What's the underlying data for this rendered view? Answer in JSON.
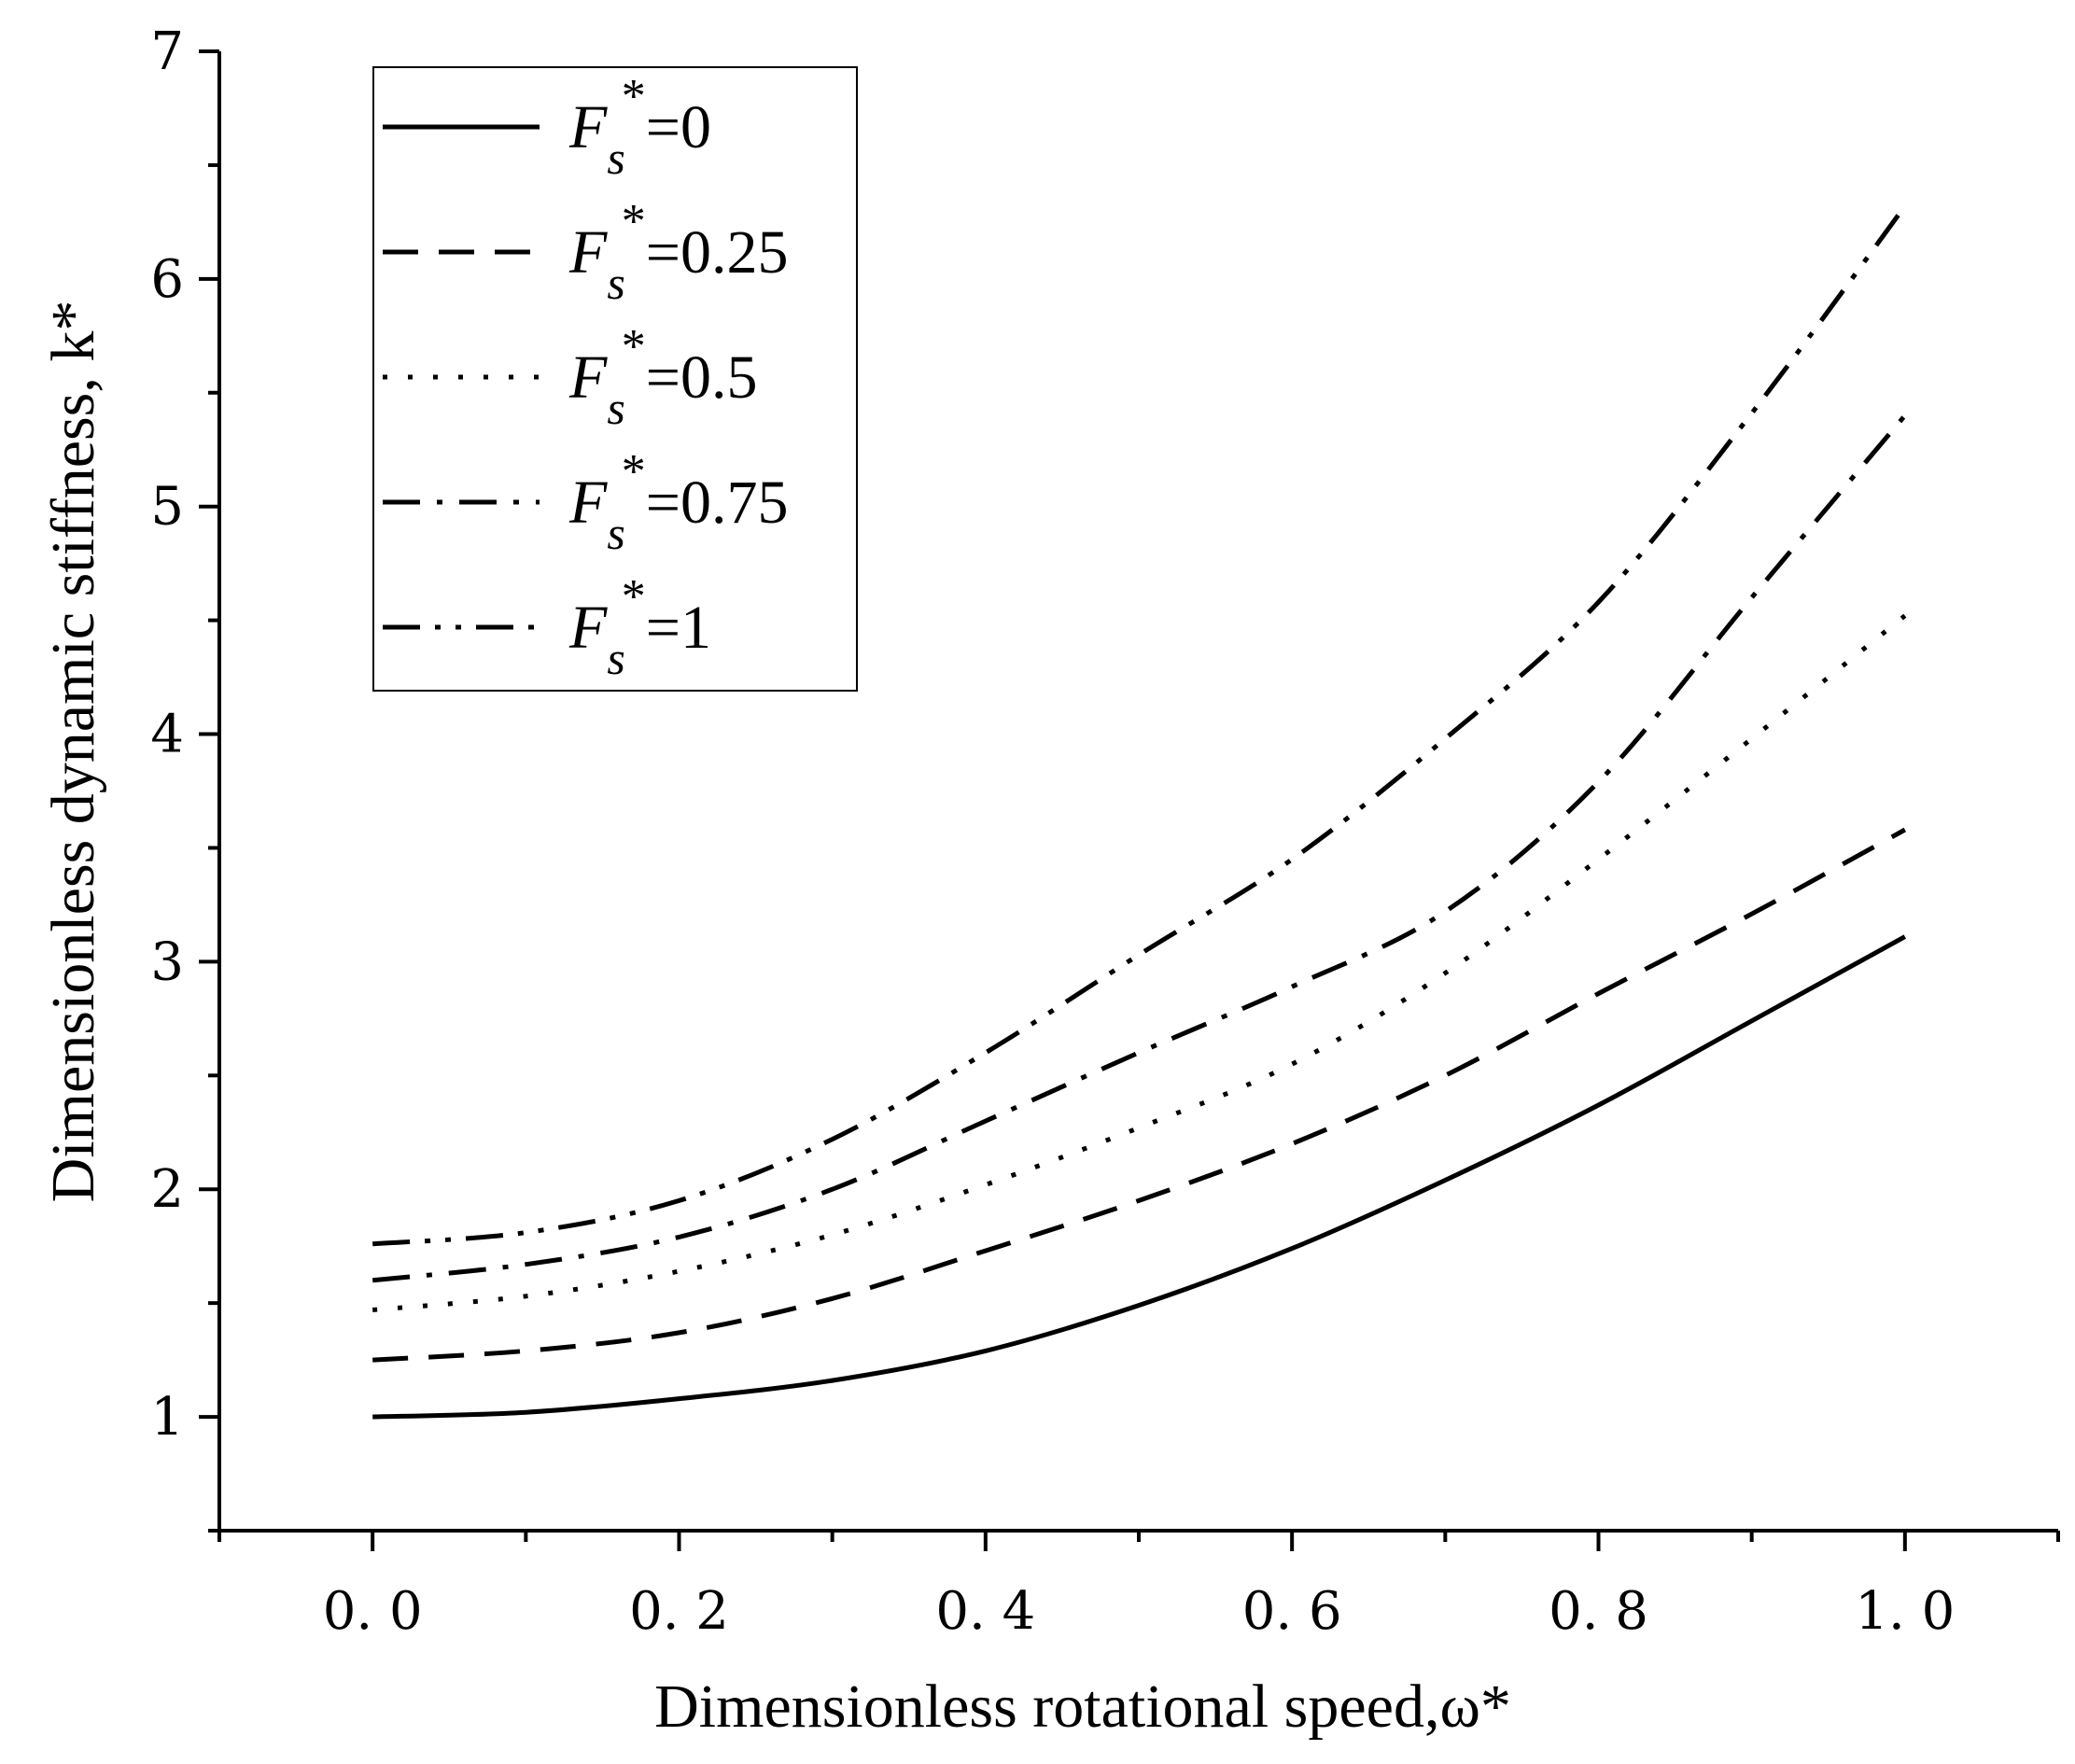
{
  "chart_data": {
    "type": "line",
    "title": "",
    "xlabel": "Dimensionless rotational speed,ω*",
    "ylabel": "Dimensionless dynamic stiffness, k*",
    "xlim": [
      -0.1,
      1.1
    ],
    "ylim": [
      0.5,
      7
    ],
    "x_ticks": [
      0.0,
      0.2,
      0.4,
      0.6,
      0.8,
      1.0
    ],
    "x_tick_labels": [
      "0. 0",
      "0. 2",
      "0. 4",
      "0. 6",
      "0. 8",
      "1. 0"
    ],
    "y_ticks": [
      1,
      2,
      3,
      4,
      5,
      6,
      7
    ],
    "y_tick_labels": [
      "1",
      "2",
      "3",
      "4",
      "5",
      "6",
      "7"
    ],
    "grid": false,
    "legend_position": "top-left",
    "x": [
      0.0,
      0.1,
      0.2,
      0.3,
      0.4,
      0.5,
      0.6,
      0.7,
      0.8,
      0.9,
      1.0
    ],
    "series": [
      {
        "name": "Fs*=0",
        "symbol": "F",
        "subscript": "s",
        "superscript": "*",
        "value_text": "=0",
        "dash": "solid",
        "values": [
          1.0,
          1.02,
          1.08,
          1.16,
          1.29,
          1.49,
          1.74,
          2.04,
          2.37,
          2.74,
          3.11
        ]
      },
      {
        "name": "Fs*=0.25",
        "symbol": "F",
        "subscript": "s",
        "superscript": "*",
        "value_text": "=0.25",
        "dash": "dash",
        "values": [
          1.25,
          1.29,
          1.37,
          1.52,
          1.73,
          1.95,
          2.2,
          2.5,
          2.86,
          3.21,
          3.58
        ]
      },
      {
        "name": "Fs*=0.5",
        "symbol": "F",
        "subscript": "s",
        "superscript": "*",
        "value_text": "=0.5",
        "dash": "dot",
        "values": [
          1.47,
          1.53,
          1.64,
          1.8,
          2.02,
          2.27,
          2.55,
          2.95,
          3.45,
          3.98,
          4.52
        ]
      },
      {
        "name": "Fs*=0.75",
        "symbol": "F",
        "subscript": "s",
        "superscript": "*",
        "value_text": "=0.75",
        "dash": "dashdot",
        "values": [
          1.6,
          1.67,
          1.79,
          2.0,
          2.3,
          2.6,
          2.89,
          3.22,
          3.79,
          4.6,
          5.4
        ]
      },
      {
        "name": "Fs*=1",
        "symbol": "F",
        "subscript": "s",
        "superscript": "*",
        "value_text": "=1",
        "dash": "dashdotdot",
        "values": [
          1.76,
          1.81,
          1.95,
          2.22,
          2.6,
          3.03,
          3.45,
          3.98,
          4.58,
          5.41,
          6.32
        ]
      }
    ]
  }
}
